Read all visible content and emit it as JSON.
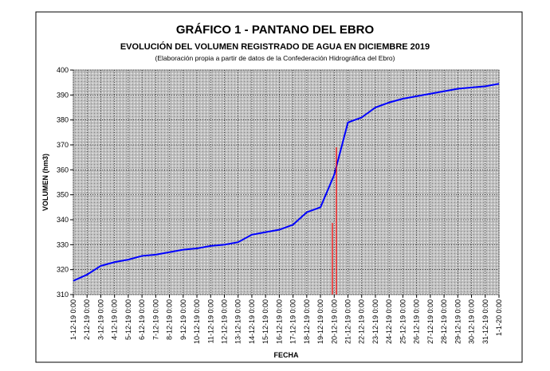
{
  "chart_data": {
    "type": "line",
    "title": "GRÁFICO 1 - PANTANO DEL EBRO",
    "subtitle": "EVOLUCIÓN DEL VOLUMEN REGISTRADO DE AGUA EN DICIEMBRE 2019",
    "note": "(Elaboración propia a partir de datos de la Confederación Hidrográfica del Ebro)",
    "ylabel": "VOLUMEN (hm3)",
    "xlabel": "FECHA",
    "categories": [
      "1-12-19 0:00",
      "2-12-19 0:00",
      "3-12-19 0:00",
      "4-12-19 0:00",
      "5-12-19 0:00",
      "6-12-19 0:00",
      "7-12-19 0:00",
      "8-12-19 0:00",
      "9-12-19 0:00",
      "10-12-19 0:00",
      "11-12-19 0:00",
      "12-12-19 0:00",
      "13-12-19 0:00",
      "14-12-19 0:00",
      "15-12-19 0:00",
      "16-12-19 0:00",
      "17-12-19 0:00",
      "18-12-19 0:00",
      "19-12-19 0:00",
      "20-12-19 0:00",
      "21-12-19 0:00",
      "22-12-19 0:00",
      "23-12-19 0:00",
      "24-12-19 0:00",
      "25-12-19 0:00",
      "26-12-19 0:00",
      "27-12-19 0:00",
      "28-12-19 0:00",
      "29-12-19 0:00",
      "30-12-19 0:00",
      "31-12-19 0:00",
      "1-1-20 0:00"
    ],
    "series": [
      {
        "name": "Volumen",
        "color": "#0000ff",
        "values": [
          315.5,
          318,
          321.5,
          323,
          324,
          325.5,
          326,
          327,
          328,
          328.5,
          329.5,
          330,
          331,
          334,
          335,
          336,
          338,
          343,
          345,
          358,
          379,
          381,
          385,
          387,
          388.5,
          389.5,
          390.5,
          391.5,
          392.5,
          393,
          393.5,
          394.5
        ]
      }
    ],
    "ylim": [
      310,
      400
    ],
    "yticks": [
      310,
      320,
      330,
      340,
      350,
      360,
      370,
      380,
      390,
      400
    ],
    "grid": true
  }
}
